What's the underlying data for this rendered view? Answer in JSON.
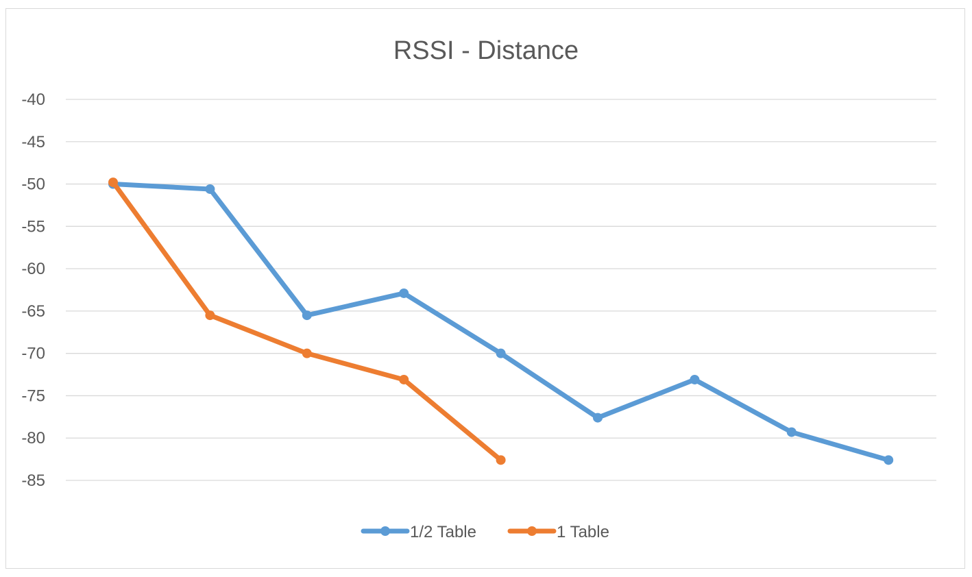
{
  "chart_data": {
    "type": "line",
    "title": "RSSI - Distance",
    "xlabel": "",
    "ylabel": "",
    "ylim": [
      -85,
      -40
    ],
    "y_ticks": [
      -40,
      -45,
      -50,
      -55,
      -60,
      -65,
      -70,
      -75,
      -80,
      -85
    ],
    "grid": true,
    "legend_position": "bottom",
    "series": [
      {
        "name": "1/2 Table",
        "color": "#5b9bd5",
        "values": [
          -50,
          -50.6,
          -65.5,
          -62.9,
          -70,
          -77.6,
          -73.1,
          -79.3,
          -82.6
        ]
      },
      {
        "name": "1 Table",
        "color": "#ed7d31",
        "values": [
          -49.8,
          -65.5,
          -70,
          -73.1,
          -82.6
        ]
      }
    ]
  }
}
